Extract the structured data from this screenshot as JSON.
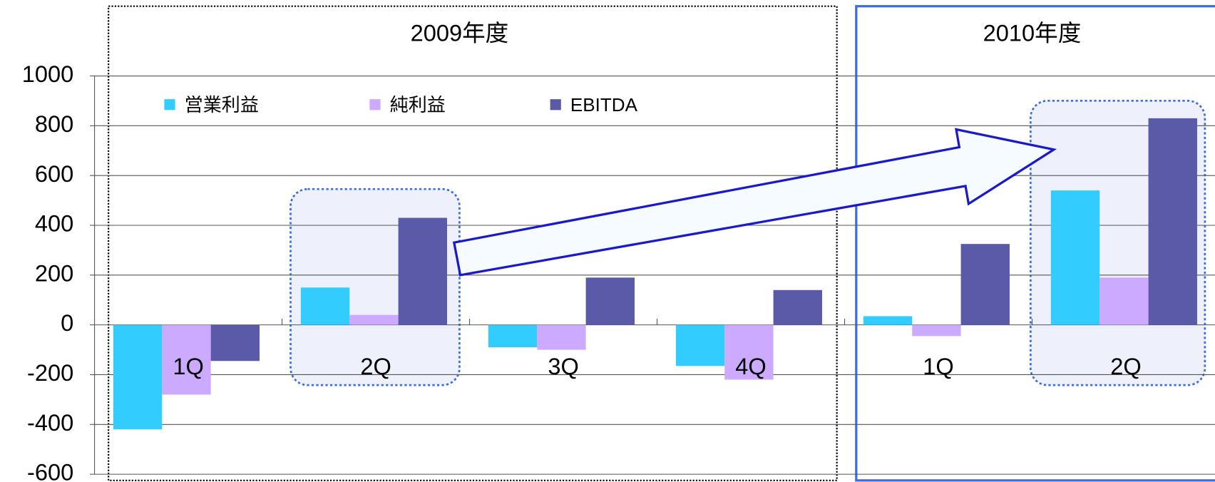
{
  "chart_data": {
    "type": "bar",
    "groups": [
      "2009年度",
      "2010年度"
    ],
    "categories": [
      "1Q",
      "2Q",
      "3Q",
      "4Q",
      "1Q",
      "2Q"
    ],
    "series": [
      {
        "name": "営業利益",
        "color": "#33ccff",
        "values": [
          -420,
          150,
          -90,
          -165,
          35,
          540
        ]
      },
      {
        "name": "純利益",
        "color": "#ccaaff",
        "values": [
          -280,
          40,
          -100,
          -220,
          -45,
          190
        ]
      },
      {
        "name": "EBITDA",
        "color": "#5a5aa8",
        "values": [
          -145,
          430,
          190,
          140,
          325,
          830
        ]
      }
    ],
    "ylim": [
      -600,
      1000
    ],
    "yticks": [
      -600,
      -400,
      -200,
      0,
      200,
      400,
      600,
      800,
      1000
    ],
    "grid": true
  }
}
